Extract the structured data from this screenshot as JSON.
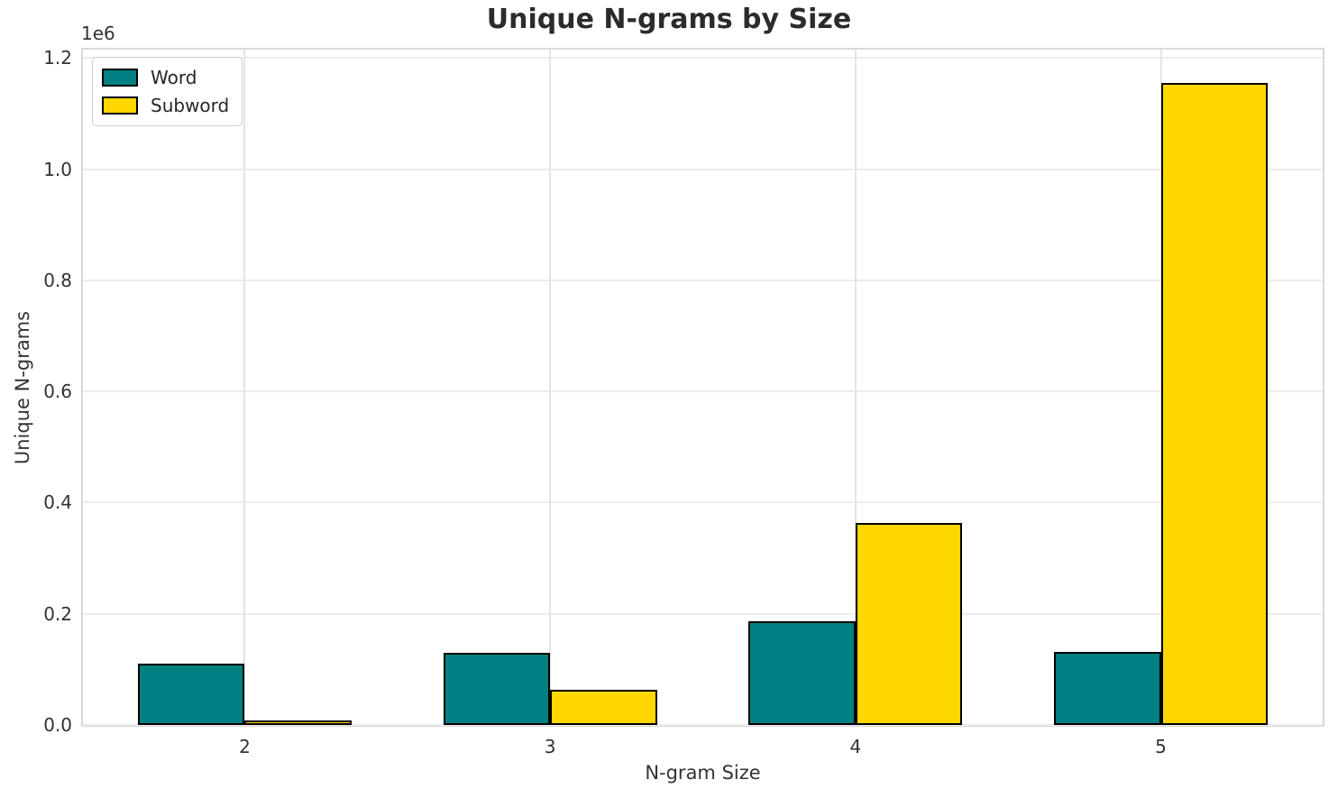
{
  "chart_data": {
    "type": "bar",
    "title": "Unique N-grams by Size",
    "xlabel": "N-gram Size",
    "ylabel": "Unique N-grams",
    "offset_text": "1e6",
    "categories": [
      "2",
      "3",
      "4",
      "5"
    ],
    "series": [
      {
        "name": "Word",
        "color": "#008080",
        "values": [
          110000,
          129000,
          187000,
          131000
        ]
      },
      {
        "name": "Subword",
        "color": "#FFD700",
        "values": [
          8000,
          63000,
          363000,
          1155000
        ]
      }
    ],
    "bar_edge_color": "#000000",
    "ylim": [
      0,
      1215000
    ],
    "xlim": [
      -0.53,
      3.53
    ],
    "bar_width_units": 0.35,
    "yticks": [
      0,
      200000,
      400000,
      600000,
      800000,
      1000000,
      1200000
    ],
    "ytick_labels": [
      "0.0",
      "0.2",
      "0.4",
      "0.6",
      "0.8",
      "1.0",
      "1.2"
    ],
    "grid": true,
    "legend_position": "upper left"
  }
}
